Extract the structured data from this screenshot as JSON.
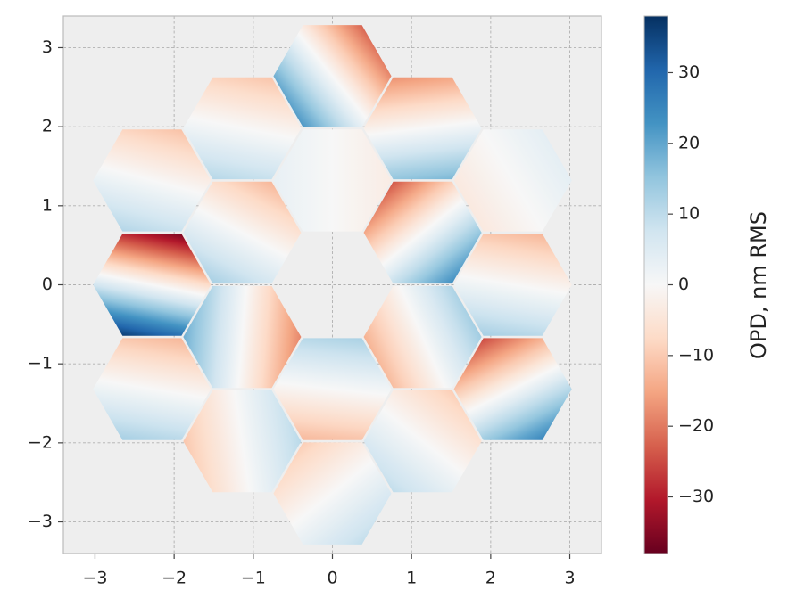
{
  "chart_data": {
    "type": "hexmap",
    "colorbar_label": "OPD, nm RMS",
    "colormap": "RdBu",
    "clim": [
      -38,
      38
    ],
    "cticks": [
      {
        "value": -30,
        "label": "−30"
      },
      {
        "value": -20,
        "label": "−20"
      },
      {
        "value": -10,
        "label": "−10"
      },
      0,
      10,
      20,
      30
    ],
    "xlim": [
      -3.4,
      3.4
    ],
    "ylim": [
      -3.4,
      3.4
    ],
    "xticks": [
      {
        "value": -3,
        "label": "−3"
      },
      {
        "value": -2,
        "label": "−2"
      },
      {
        "value": -1,
        "label": "−1"
      },
      0,
      1,
      2,
      3
    ],
    "yticks": [
      {
        "value": -3,
        "label": "−3"
      },
      {
        "value": -2,
        "label": "−2"
      },
      {
        "value": -1,
        "label": "−1"
      },
      0,
      1,
      2,
      3
    ],
    "grid": true,
    "segments": [
      {
        "x": 0,
        "y": 2.64,
        "gx": -25,
        "gy": -20
      },
      {
        "x": -1.14,
        "y": 1.98,
        "gx": -3,
        "gy": -15
      },
      {
        "x": 1.14,
        "y": 1.98,
        "gx": 3,
        "gy": -25
      },
      {
        "x": -2.28,
        "y": 1.32,
        "gx": -4,
        "gy": -15
      },
      {
        "x": 0,
        "y": 1.32,
        "gx": -4,
        "gy": 0
      },
      {
        "x": 2.28,
        "y": 1.32,
        "gx": 5,
        "gy": 3
      },
      {
        "x": -1.14,
        "y": 0.66,
        "gx": -8,
        "gy": -15
      },
      {
        "x": 1.14,
        "y": 0.66,
        "gx": 20,
        "gy": -25
      },
      {
        "x": -2.28,
        "y": 0,
        "gx": -10,
        "gy": -50
      },
      {
        "x": 2.28,
        "y": 0,
        "gx": -3,
        "gy": -18
      },
      {
        "x": -1.14,
        "y": -0.66,
        "gx": -25,
        "gy": 2
      },
      {
        "x": 1.14,
        "y": -0.66,
        "gx": 18,
        "gy": 8
      },
      {
        "x": -2.28,
        "y": -1.32,
        "gx": -3,
        "gy": -18
      },
      {
        "x": 0,
        "y": -1.32,
        "gx": 2,
        "gy": 18
      },
      {
        "x": 2.28,
        "y": -1.32,
        "gx": 15,
        "gy": -30
      },
      {
        "x": -1.14,
        "y": -1.98,
        "gx": 14,
        "gy": 2
      },
      {
        "x": 1.14,
        "y": -1.98,
        "gx": -8,
        "gy": -10
      },
      {
        "x": 0,
        "y": -2.64,
        "gx": 8,
        "gy": -10
      }
    ]
  }
}
